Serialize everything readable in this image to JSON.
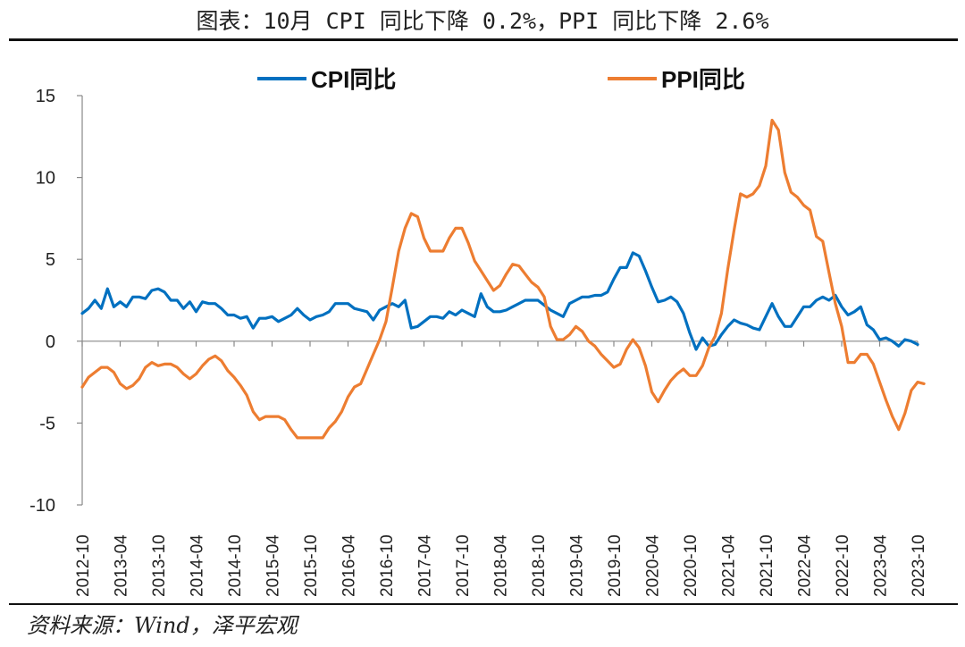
{
  "title": "图表：10月 CPI 同比下降 0.2%，PPI 同比下降 2.6%",
  "source": "资料来源：Wind，泽平宏观",
  "chart_data": {
    "type": "line",
    "title": "图表：10月 CPI 同比下降 0.2%，PPI 同比下降 2.6%",
    "xlabel": "",
    "ylabel": "",
    "ylim": [
      -10,
      15
    ],
    "yticks": [
      -10,
      -5,
      0,
      5,
      10,
      15
    ],
    "xticks": [
      "2012-10",
      "2013-04",
      "2013-10",
      "2014-04",
      "2014-10",
      "2015-04",
      "2015-10",
      "2016-04",
      "2016-10",
      "2017-04",
      "2017-10",
      "2018-04",
      "2018-10",
      "2019-04",
      "2019-10",
      "2020-04",
      "2020-10",
      "2021-04",
      "2021-10",
      "2022-04",
      "2022-10",
      "2023-04",
      "2023-10"
    ],
    "x_start": "2012-10",
    "grid": false,
    "legend": "top",
    "series": [
      {
        "name": "CPI同比",
        "color": "#0070C0",
        "values": [
          1.7,
          2.0,
          2.5,
          2.0,
          3.2,
          2.1,
          2.4,
          2.1,
          2.7,
          2.7,
          2.6,
          3.1,
          3.2,
          3.0,
          2.5,
          2.5,
          2.0,
          2.4,
          1.8,
          2.4,
          2.3,
          2.3,
          2.0,
          1.6,
          1.6,
          1.4,
          1.5,
          0.8,
          1.4,
          1.4,
          1.5,
          1.2,
          1.4,
          1.6,
          2.0,
          1.6,
          1.3,
          1.5,
          1.6,
          1.8,
          2.3,
          2.3,
          2.3,
          2.0,
          1.9,
          1.8,
          1.3,
          1.9,
          2.1,
          2.3,
          2.1,
          2.5,
          0.8,
          0.9,
          1.2,
          1.5,
          1.5,
          1.4,
          1.8,
          1.6,
          1.9,
          1.7,
          1.5,
          2.9,
          2.1,
          1.8,
          1.8,
          1.9,
          2.1,
          2.3,
          2.5,
          2.5,
          2.5,
          2.2,
          1.9,
          1.7,
          1.5,
          2.3,
          2.5,
          2.7,
          2.7,
          2.8,
          2.8,
          3.0,
          3.8,
          4.5,
          4.5,
          5.4,
          5.2,
          4.3,
          3.3,
          2.4,
          2.5,
          2.7,
          2.4,
          1.7,
          0.5,
          -0.5,
          0.2,
          -0.3,
          -0.2,
          0.4,
          0.9,
          1.3,
          1.1,
          1.0,
          0.8,
          0.7,
          1.5,
          2.3,
          1.5,
          0.9,
          0.9,
          1.5,
          2.1,
          2.1,
          2.5,
          2.7,
          2.5,
          2.8,
          2.1,
          1.6,
          1.8,
          2.1,
          1.0,
          0.7,
          0.1,
          0.2,
          0.0,
          -0.3,
          0.1,
          0.0,
          -0.2
        ]
      },
      {
        "name": "PPI同比",
        "color": "#ED7D31",
        "values": [
          -2.8,
          -2.2,
          -1.9,
          -1.6,
          -1.6,
          -1.9,
          -2.6,
          -2.9,
          -2.7,
          -2.3,
          -1.6,
          -1.3,
          -1.5,
          -1.4,
          -1.4,
          -1.6,
          -2.0,
          -2.3,
          -2.0,
          -1.5,
          -1.1,
          -0.9,
          -1.2,
          -1.8,
          -2.2,
          -2.7,
          -3.3,
          -4.3,
          -4.8,
          -4.6,
          -4.6,
          -4.6,
          -4.8,
          -5.4,
          -5.9,
          -5.9,
          -5.9,
          -5.9,
          -5.9,
          -5.3,
          -4.9,
          -4.3,
          -3.4,
          -2.8,
          -2.6,
          -1.7,
          -0.8,
          0.1,
          1.2,
          3.3,
          5.5,
          6.9,
          7.8,
          7.6,
          6.3,
          5.5,
          5.5,
          5.5,
          6.3,
          6.9,
          6.9,
          6.0,
          4.9,
          4.3,
          3.7,
          3.1,
          3.4,
          4.1,
          4.7,
          4.6,
          4.1,
          3.6,
          3.3,
          2.7,
          0.9,
          0.1,
          0.1,
          0.4,
          0.9,
          0.6,
          0.0,
          -0.3,
          -0.8,
          -1.2,
          -1.6,
          -1.4,
          -0.5,
          0.1,
          -0.4,
          -1.5,
          -3.1,
          -3.7,
          -3.0,
          -2.4,
          -2.0,
          -1.7,
          -2.1,
          -2.1,
          -1.5,
          -0.4,
          0.3,
          1.7,
          4.4,
          6.8,
          9.0,
          8.8,
          9.0,
          9.5,
          10.7,
          13.5,
          12.9,
          10.3,
          9.1,
          8.8,
          8.3,
          8.0,
          6.4,
          6.1,
          4.2,
          2.3,
          0.9,
          -1.3,
          -1.3,
          -0.8,
          -0.8,
          -1.4,
          -2.5,
          -3.6,
          -4.6,
          -5.4,
          -4.4,
          -3.0,
          -2.5,
          -2.6
        ]
      }
    ]
  }
}
